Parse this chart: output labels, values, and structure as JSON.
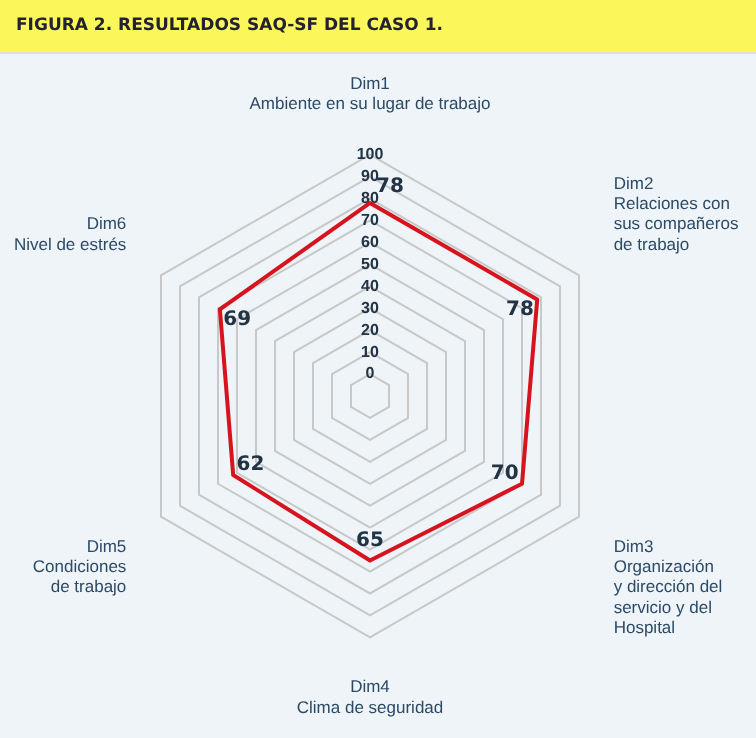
{
  "chart_data": {
    "type": "radar",
    "title": "FIGURA 2. RESULTADOS SAQ-SF DEL CASO 1.",
    "categories": [
      "Dim1\nAmbiente en su lugar de trabajo",
      "Dim2\nRelaciones con\nsus compañeros\nde trabajo",
      "Dim3\nOrganización\ny dirección del\nservicio y del\nHospital",
      "Dim4\nClima de seguridad",
      "Dim5\nCondiciones\nde trabajo",
      "Dim6\nNivel de estrés"
    ],
    "series": [
      {
        "color": "#d7141e",
        "values": [
          78,
          78,
          70,
          65,
          62,
          69
        ]
      }
    ],
    "ylim": [
      -10,
      100
    ],
    "yticks": [
      0,
      10,
      20,
      30,
      40,
      50,
      60,
      70,
      80,
      90,
      100
    ],
    "grid": true,
    "legend": false,
    "data_labels": true,
    "marker": "none"
  }
}
